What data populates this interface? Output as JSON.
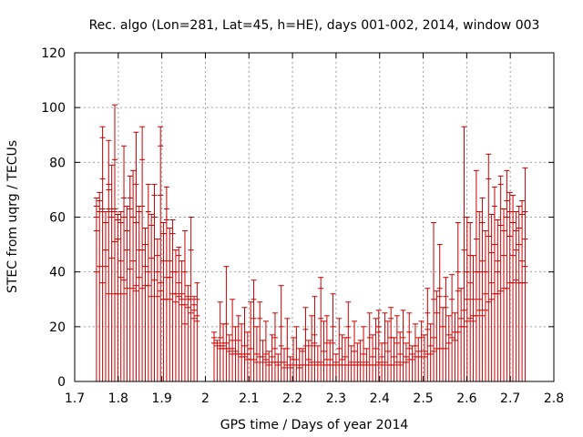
{
  "chart_data": {
    "type": "errorbar",
    "title": "Rec. algo (Lon=281, Lat=45, h=HE), days 001-002, 2014, window 003",
    "xlabel": "GPS time / Days of year 2014",
    "ylabel": "STEC from uqrg / TECUs",
    "xlim": [
      1.7,
      2.8
    ],
    "ylim": [
      0,
      120
    ],
    "xticks": [
      1.7,
      1.8,
      1.9,
      2.0,
      2.1,
      2.2,
      2.3,
      2.4,
      2.5,
      2.6,
      2.7,
      2.8
    ],
    "yticks": [
      0,
      20,
      40,
      60,
      80,
      100,
      120
    ],
    "xtick_labels": [
      "1.7",
      "1.8",
      "1.9",
      "2",
      "2.1",
      "2.2",
      "2.3",
      "2.4",
      "2.5",
      "2.6",
      "2.7",
      "2.8"
    ],
    "ytick_labels": [
      "0",
      "20",
      "40",
      "60",
      "80",
      "100",
      "120"
    ],
    "grid": true,
    "color": "#cc0000",
    "bars": [
      {
        "x": 1.75,
        "top": 67,
        "marks": [
          55,
          40,
          64,
          60
        ]
      },
      {
        "x": 1.757,
        "top": 69,
        "marks": [
          62,
          42,
          66
        ]
      },
      {
        "x": 1.764,
        "top": 93,
        "marks": [
          63,
          36,
          89,
          74
        ]
      },
      {
        "x": 1.771,
        "top": 62,
        "marks": [
          48,
          42,
          58
        ]
      },
      {
        "x": 1.778,
        "top": 88,
        "marks": [
          63,
          32,
          72,
          70
        ]
      },
      {
        "x": 1.785,
        "top": 79,
        "marks": [
          62,
          45,
          60
        ]
      },
      {
        "x": 1.792,
        "top": 101,
        "marks": [
          81,
          51,
          32,
          62,
          63
        ]
      },
      {
        "x": 1.799,
        "top": 61,
        "marks": [
          52,
          32,
          59
        ]
      },
      {
        "x": 1.806,
        "top": 62,
        "marks": [
          44,
          38,
          58
        ]
      },
      {
        "x": 1.813,
        "top": 86,
        "marks": [
          67,
          32,
          60,
          37
        ]
      },
      {
        "x": 1.82,
        "top": 64,
        "marks": [
          48,
          34,
          55
        ]
      },
      {
        "x": 1.827,
        "top": 75,
        "marks": [
          63,
          41,
          67
        ]
      },
      {
        "x": 1.834,
        "top": 77,
        "marks": [
          44,
          34,
          60
        ]
      },
      {
        "x": 1.841,
        "top": 91,
        "marks": [
          72,
          33,
          58,
          35
        ]
      },
      {
        "x": 1.848,
        "top": 64,
        "marks": [
          62,
          38,
          48
        ]
      },
      {
        "x": 1.855,
        "top": 93,
        "marks": [
          81,
          34,
          48,
          64
        ]
      },
      {
        "x": 1.862,
        "top": 56,
        "marks": [
          42,
          35,
          50
        ]
      },
      {
        "x": 1.869,
        "top": 72,
        "marks": [
          62,
          35,
          40
        ]
      },
      {
        "x": 1.876,
        "top": 61,
        "marks": [
          45,
          31,
          57
        ]
      },
      {
        "x": 1.883,
        "top": 72,
        "marks": [
          68,
          37,
          60
        ]
      },
      {
        "x": 1.89,
        "top": 52,
        "marks": [
          40,
          31,
          46
        ]
      },
      {
        "x": 1.897,
        "top": 93,
        "marks": [
          86,
          33,
          68,
          36
        ]
      },
      {
        "x": 1.904,
        "top": 58,
        "marks": [
          44,
          30,
          54
        ]
      },
      {
        "x": 1.911,
        "top": 71,
        "marks": [
          63,
          30,
          59,
          38
        ]
      },
      {
        "x": 1.918,
        "top": 56,
        "marks": [
          44,
          30,
          38
        ]
      },
      {
        "x": 1.925,
        "top": 59,
        "marks": [
          54,
          32,
          40
        ]
      },
      {
        "x": 1.932,
        "top": 48,
        "marks": [
          32,
          29,
          40
        ]
      },
      {
        "x": 1.939,
        "top": 49,
        "marks": [
          46,
          31,
          36
        ]
      },
      {
        "x": 1.946,
        "top": 44,
        "marks": [
          32,
          28,
          30
        ]
      },
      {
        "x": 1.953,
        "top": 55,
        "marks": [
          40,
          21,
          28
        ]
      },
      {
        "x": 1.96,
        "top": 35,
        "marks": [
          31,
          27,
          30
        ]
      },
      {
        "x": 1.967,
        "top": 60,
        "marks": [
          48,
          25,
          30
        ]
      },
      {
        "x": 1.974,
        "top": 31,
        "marks": [
          26,
          23,
          28
        ]
      },
      {
        "x": 1.981,
        "top": 36,
        "marks": [
          30,
          22,
          24
        ]
      },
      {
        "x": 2.02,
        "top": 18,
        "marks": [
          14,
          16
        ]
      },
      {
        "x": 2.027,
        "top": 15,
        "marks": [
          13,
          14
        ]
      },
      {
        "x": 2.034,
        "top": 29,
        "marks": [
          16,
          12,
          13
        ]
      },
      {
        "x": 2.041,
        "top": 21,
        "marks": [
          14,
          13,
          12
        ]
      },
      {
        "x": 2.048,
        "top": 42,
        "marks": [
          21,
          12,
          14
        ]
      },
      {
        "x": 2.055,
        "top": 17,
        "marks": [
          12,
          11
        ]
      },
      {
        "x": 2.062,
        "top": 30,
        "marks": [
          15,
          10,
          12
        ]
      },
      {
        "x": 2.069,
        "top": 20,
        "marks": [
          11,
          10
        ]
      },
      {
        "x": 2.076,
        "top": 24,
        "marks": [
          15,
          10
        ]
      },
      {
        "x": 2.083,
        "top": 21,
        "marks": [
          10,
          9
        ]
      },
      {
        "x": 2.09,
        "top": 27,
        "marks": [
          13,
          9,
          10
        ]
      },
      {
        "x": 2.097,
        "top": 18,
        "marks": [
          10,
          8
        ]
      },
      {
        "x": 2.104,
        "top": 29,
        "marks": [
          12,
          8
        ]
      },
      {
        "x": 2.111,
        "top": 37,
        "marks": [
          23,
          8,
          30
        ]
      },
      {
        "x": 2.118,
        "top": 20,
        "marks": [
          10,
          7
        ]
      },
      {
        "x": 2.125,
        "top": 29,
        "marks": [
          23,
          9
        ]
      },
      {
        "x": 2.132,
        "top": 15,
        "marks": [
          9,
          7
        ]
      },
      {
        "x": 2.139,
        "top": 22,
        "marks": [
          10,
          8
        ]
      },
      {
        "x": 2.146,
        "top": 11,
        "marks": [
          7,
          6
        ]
      },
      {
        "x": 2.153,
        "top": 17,
        "marks": [
          9,
          7
        ]
      },
      {
        "x": 2.16,
        "top": 25,
        "marks": [
          12,
          7,
          16
        ]
      },
      {
        "x": 2.167,
        "top": 10,
        "marks": [
          7,
          6
        ]
      },
      {
        "x": 2.174,
        "top": 35,
        "marks": [
          20,
          7,
          13
        ]
      },
      {
        "x": 2.181,
        "top": 12,
        "marks": [
          7,
          5
        ]
      },
      {
        "x": 2.188,
        "top": 23,
        "marks": [
          12,
          6
        ]
      },
      {
        "x": 2.195,
        "top": 9,
        "marks": [
          6,
          5
        ]
      },
      {
        "x": 2.202,
        "top": 16,
        "marks": [
          8,
          6
        ]
      },
      {
        "x": 2.209,
        "top": 20,
        "marks": [
          8,
          6
        ]
      },
      {
        "x": 2.216,
        "top": 12,
        "marks": [
          6,
          5
        ]
      },
      {
        "x": 2.223,
        "top": 12,
        "marks": [
          11,
          6
        ]
      },
      {
        "x": 2.23,
        "top": 27,
        "marks": [
          13,
          6,
          19
        ]
      },
      {
        "x": 2.237,
        "top": 15,
        "marks": [
          8,
          6
        ]
      },
      {
        "x": 2.244,
        "top": 24,
        "marks": [
          13,
          7
        ]
      },
      {
        "x": 2.251,
        "top": 31,
        "marks": [
          17,
          6,
          14
        ]
      },
      {
        "x": 2.258,
        "top": 13,
        "marks": [
          7,
          6
        ]
      },
      {
        "x": 2.265,
        "top": 38,
        "marks": [
          23,
          7,
          34
        ]
      },
      {
        "x": 2.272,
        "top": 22,
        "marks": [
          11,
          6
        ]
      },
      {
        "x": 2.279,
        "top": 24,
        "marks": [
          8,
          6,
          14
        ]
      },
      {
        "x": 2.286,
        "top": 15,
        "marks": [
          8,
          6
        ]
      },
      {
        "x": 2.293,
        "top": 32,
        "marks": [
          20,
          6,
          14
        ]
      },
      {
        "x": 2.3,
        "top": 10,
        "marks": [
          7,
          6
        ]
      },
      {
        "x": 2.307,
        "top": 23,
        "marks": [
          12,
          6
        ]
      },
      {
        "x": 2.314,
        "top": 17,
        "marks": [
          8,
          6
        ]
      },
      {
        "x": 2.321,
        "top": 16,
        "marks": [
          9,
          6
        ]
      },
      {
        "x": 2.328,
        "top": 29,
        "marks": [
          16,
          6,
          20
        ]
      },
      {
        "x": 2.335,
        "top": 13,
        "marks": [
          7,
          6
        ]
      },
      {
        "x": 2.342,
        "top": 22,
        "marks": [
          11,
          6
        ]
      },
      {
        "x": 2.349,
        "top": 14,
        "marks": [
          7,
          6
        ]
      },
      {
        "x": 2.356,
        "top": 15,
        "marks": [
          7,
          6
        ]
      },
      {
        "x": 2.363,
        "top": 20,
        "marks": [
          10,
          6
        ]
      },
      {
        "x": 2.37,
        "top": 12,
        "marks": [
          7,
          6
        ]
      },
      {
        "x": 2.377,
        "top": 25,
        "marks": [
          16,
          6
        ]
      },
      {
        "x": 2.384,
        "top": 17,
        "marks": [
          9,
          6
        ]
      },
      {
        "x": 2.391,
        "top": 23,
        "marks": [
          12,
          6
        ]
      },
      {
        "x": 2.398,
        "top": 26,
        "marks": [
          18,
          7,
          20
        ]
      },
      {
        "x": 2.405,
        "top": 14,
        "marks": [
          9,
          6
        ]
      },
      {
        "x": 2.412,
        "top": 25,
        "marks": [
          14,
          7
        ]
      },
      {
        "x": 2.419,
        "top": 22,
        "marks": [
          11,
          6
        ]
      },
      {
        "x": 2.426,
        "top": 27,
        "marks": [
          16,
          6,
          23
        ]
      },
      {
        "x": 2.433,
        "top": 16,
        "marks": [
          9,
          6
        ]
      },
      {
        "x": 2.44,
        "top": 24,
        "marks": [
          14,
          7
        ]
      },
      {
        "x": 2.447,
        "top": 18,
        "marks": [
          10,
          6
        ]
      },
      {
        "x": 2.454,
        "top": 26,
        "marks": [
          16,
          7
        ]
      },
      {
        "x": 2.461,
        "top": 14,
        "marks": [
          9,
          7
        ]
      },
      {
        "x": 2.468,
        "top": 25,
        "marks": [
          18,
          8,
          12
        ]
      },
      {
        "x": 2.475,
        "top": 13,
        "marks": [
          10,
          8
        ]
      },
      {
        "x": 2.482,
        "top": 21,
        "marks": [
          13,
          9
        ]
      },
      {
        "x": 2.489,
        "top": 16,
        "marks": [
          11,
          9
        ]
      },
      {
        "x": 2.496,
        "top": 22,
        "marks": [
          16,
          9
        ]
      },
      {
        "x": 2.503,
        "top": 17,
        "marks": [
          11,
          9
        ]
      },
      {
        "x": 2.51,
        "top": 34,
        "marks": [
          25,
          10,
          19
        ]
      },
      {
        "x": 2.517,
        "top": 21,
        "marks": [
          13,
          10
        ]
      },
      {
        "x": 2.524,
        "top": 58,
        "marks": [
          30,
          11,
          16
        ]
      },
      {
        "x": 2.531,
        "top": 33,
        "marks": [
          25,
          12
        ]
      },
      {
        "x": 2.538,
        "top": 50,
        "marks": [
          31,
          12,
          34
        ]
      },
      {
        "x": 2.545,
        "top": 27,
        "marks": [
          20,
          12
        ]
      },
      {
        "x": 2.552,
        "top": 38,
        "marks": [
          27,
          12,
          31
        ]
      },
      {
        "x": 2.559,
        "top": 24,
        "marks": [
          17,
          14
        ]
      },
      {
        "x": 2.566,
        "top": 39,
        "marks": [
          30,
          16
        ]
      },
      {
        "x": 2.573,
        "top": 25,
        "marks": [
          18,
          15
        ]
      },
      {
        "x": 2.58,
        "top": 58,
        "marks": [
          33,
          18,
          40
        ]
      },
      {
        "x": 2.587,
        "top": 34,
        "marks": [
          23,
          20
        ]
      },
      {
        "x": 2.594,
        "top": 93,
        "marks": [
          48,
          20,
          26
        ]
      },
      {
        "x": 2.601,
        "top": 60,
        "marks": [
          30,
          22,
          40
        ]
      },
      {
        "x": 2.608,
        "top": 58,
        "marks": [
          36,
          23,
          46
        ]
      },
      {
        "x": 2.615,
        "top": 46,
        "marks": [
          30,
          22,
          24
        ]
      },
      {
        "x": 2.622,
        "top": 77,
        "marks": [
          52,
          24,
          40
        ]
      },
      {
        "x": 2.629,
        "top": 62,
        "marks": [
          40,
          26,
          30
        ]
      },
      {
        "x": 2.636,
        "top": 67,
        "marks": [
          44,
          24,
          58
        ]
      },
      {
        "x": 2.643,
        "top": 55,
        "marks": [
          40,
          26,
          32
        ]
      },
      {
        "x": 2.65,
        "top": 83,
        "marks": [
          53,
          29,
          74
        ]
      },
      {
        "x": 2.657,
        "top": 61,
        "marks": [
          47,
          30,
          36
        ]
      },
      {
        "x": 2.664,
        "top": 71,
        "marks": [
          50,
          32,
          64
        ]
      },
      {
        "x": 2.671,
        "top": 59,
        "marks": [
          44,
          32,
          40
        ]
      },
      {
        "x": 2.678,
        "top": 75,
        "marks": [
          57,
          33,
          72
        ]
      },
      {
        "x": 2.685,
        "top": 63,
        "marks": [
          46,
          34,
          55
        ]
      },
      {
        "x": 2.692,
        "top": 77,
        "marks": [
          60,
          34,
          66
        ]
      },
      {
        "x": 2.699,
        "top": 69,
        "marks": [
          53,
          36,
          62
        ]
      },
      {
        "x": 2.706,
        "top": 68,
        "marks": [
          58,
          36,
          46
        ]
      },
      {
        "x": 2.713,
        "top": 62,
        "marks": [
          55,
          37,
          48
        ]
      },
      {
        "x": 2.72,
        "top": 64,
        "marks": [
          56,
          36,
          50
        ]
      },
      {
        "x": 2.727,
        "top": 66,
        "marks": [
          61,
          36,
          44
        ]
      },
      {
        "x": 2.734,
        "top": 78,
        "marks": [
          62,
          36,
          52,
          42
        ]
      }
    ]
  }
}
